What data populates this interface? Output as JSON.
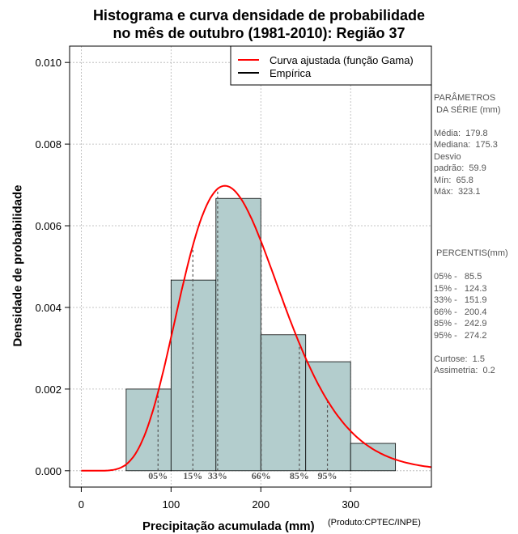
{
  "chart_data": {
    "type": "histogram",
    "title_line1": "Histograma e curva densidade de probabilidade",
    "title_line2": "no mês de outubro (1981-2010): Região 37",
    "xlabel": "Precipitação acumulada (mm)",
    "ylabel": "Densidade de probabilidade",
    "credit": "(Produto:CPTEC/INPE)",
    "xlim": [
      -13,
      390
    ],
    "ylim": [
      -0.0004,
      0.0104
    ],
    "xticks": [
      0,
      100,
      200,
      300
    ],
    "xtick_labels": [
      "0",
      "100",
      "200",
      "300"
    ],
    "yticks": [
      0.0,
      0.002,
      0.004,
      0.006,
      0.008,
      0.01
    ],
    "ytick_labels": [
      "0.000",
      "0.002",
      "0.004",
      "0.006",
      "0.008",
      "0.010"
    ],
    "bins": [
      {
        "x0": 50,
        "x1": 100,
        "density": 0.002
      },
      {
        "x0": 100,
        "x1": 150,
        "density": 0.00467
      },
      {
        "x0": 150,
        "x1": 200,
        "density": 0.00667
      },
      {
        "x0": 200,
        "x1": 250,
        "density": 0.00333
      },
      {
        "x0": 250,
        "x1": 300,
        "density": 0.00267
      },
      {
        "x0": 300,
        "x1": 350,
        "density": 0.00067
      }
    ],
    "gamma_fit": {
      "shape": 9.0,
      "scale": 20.0
    },
    "percentiles": [
      {
        "label": "05%",
        "value": 85.5
      },
      {
        "label": "15%",
        "value": 124.3
      },
      {
        "label": "33%",
        "value": 151.9
      },
      {
        "label": "66%",
        "value": 200.4
      },
      {
        "label": "85%",
        "value": 242.9
      },
      {
        "label": "95%",
        "value": 274.2
      }
    ],
    "legend": [
      {
        "label": "Curva ajustada (função Gama)",
        "color": "#ff0000"
      },
      {
        "label": "Empírica",
        "color": "#000000"
      }
    ],
    "legend_position": "top-right",
    "colors": {
      "bar_fill": "#b3cdcd",
      "curve": "#ff0000",
      "grid": "#b4b4b4",
      "percentile_line": "#555555"
    }
  },
  "side_panel": {
    "params_lines": [
      "PARÂMETROS",
      " DA SÉRIE (mm)",
      "",
      "Média:  179.8",
      "Mediana:  175.3",
      "Desvio",
      "padrão:  59.9",
      "Mín:  65.8",
      "Máx:  323.1"
    ],
    "percentile_lines": [
      " PERCENTIS(mm)",
      "",
      "05% -   85.5",
      "15% -   124.3",
      "33% -   151.9",
      "66% -   200.4",
      "85% -   242.9",
      "95% -   274.2",
      "",
      "Curtose:  1.5",
      "Assimetria:  0.2"
    ]
  }
}
